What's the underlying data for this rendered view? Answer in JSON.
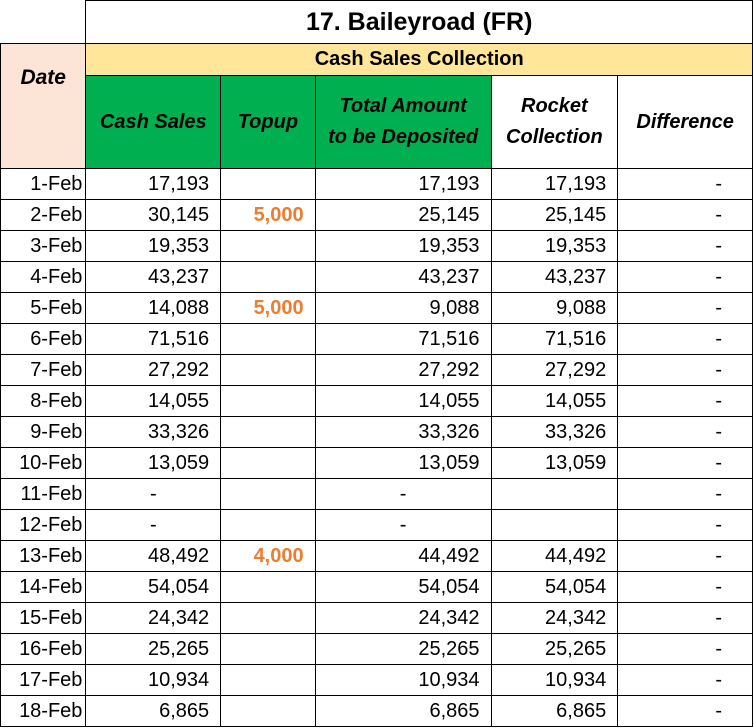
{
  "title": "17. Baileyroad (FR)",
  "section_header": "Cash Sales Collection",
  "columns": {
    "date": "Date",
    "cash_sales": "Cash Sales",
    "topup": "Topup",
    "total_line1": "Total Amount",
    "total_line2": "to be Deposited",
    "rocket_line1": "Rocket",
    "rocket_line2": "Collection",
    "difference": "Difference"
  },
  "colors": {
    "header_green": "#00b050",
    "section_yellow": "#ffe699",
    "date_peach": "#fce4d6",
    "topup_orange": "#ed7d31"
  },
  "rows": [
    {
      "date": "1-Feb",
      "cash_sales": "17,193",
      "topup": "",
      "total": "17,193",
      "rocket": "17,193",
      "difference": "-"
    },
    {
      "date": "2-Feb",
      "cash_sales": "30,145",
      "topup": "5,000",
      "total": "25,145",
      "rocket": "25,145",
      "difference": "-"
    },
    {
      "date": "3-Feb",
      "cash_sales": "19,353",
      "topup": "",
      "total": "19,353",
      "rocket": "19,353",
      "difference": "-"
    },
    {
      "date": "4-Feb",
      "cash_sales": "43,237",
      "topup": "",
      "total": "43,237",
      "rocket": "43,237",
      "difference": "-"
    },
    {
      "date": "5-Feb",
      "cash_sales": "14,088",
      "topup": "5,000",
      "total": "9,088",
      "rocket": "9,088",
      "difference": "-"
    },
    {
      "date": "6-Feb",
      "cash_sales": "71,516",
      "topup": "",
      "total": "71,516",
      "rocket": "71,516",
      "difference": "-"
    },
    {
      "date": "7-Feb",
      "cash_sales": "27,292",
      "topup": "",
      "total": "27,292",
      "rocket": "27,292",
      "difference": "-"
    },
    {
      "date": "8-Feb",
      "cash_sales": "14,055",
      "topup": "",
      "total": "14,055",
      "rocket": "14,055",
      "difference": "-"
    },
    {
      "date": "9-Feb",
      "cash_sales": "33,326",
      "topup": "",
      "total": "33,326",
      "rocket": "33,326",
      "difference": "-"
    },
    {
      "date": "10-Feb",
      "cash_sales": "13,059",
      "topup": "",
      "total": "13,059",
      "rocket": "13,059",
      "difference": "-"
    },
    {
      "date": "11-Feb",
      "cash_sales": "-",
      "topup": "",
      "total": "-",
      "rocket": "",
      "difference": "-"
    },
    {
      "date": "12-Feb",
      "cash_sales": "-",
      "topup": "",
      "total": "-",
      "rocket": "",
      "difference": "-"
    },
    {
      "date": "13-Feb",
      "cash_sales": "48,492",
      "topup": "4,000",
      "total": "44,492",
      "rocket": "44,492",
      "difference": "-"
    },
    {
      "date": "14-Feb",
      "cash_sales": "54,054",
      "topup": "",
      "total": "54,054",
      "rocket": "54,054",
      "difference": "-"
    },
    {
      "date": "15-Feb",
      "cash_sales": "24,342",
      "topup": "",
      "total": "24,342",
      "rocket": "24,342",
      "difference": "-"
    },
    {
      "date": "16-Feb",
      "cash_sales": "25,265",
      "topup": "",
      "total": "25,265",
      "rocket": "25,265",
      "difference": "-"
    },
    {
      "date": "17-Feb",
      "cash_sales": "10,934",
      "topup": "",
      "total": "10,934",
      "rocket": "10,934",
      "difference": "-"
    },
    {
      "date": "18-Feb",
      "cash_sales": "6,865",
      "topup": "",
      "total": "6,865",
      "rocket": "6,865",
      "difference": "-"
    }
  ]
}
